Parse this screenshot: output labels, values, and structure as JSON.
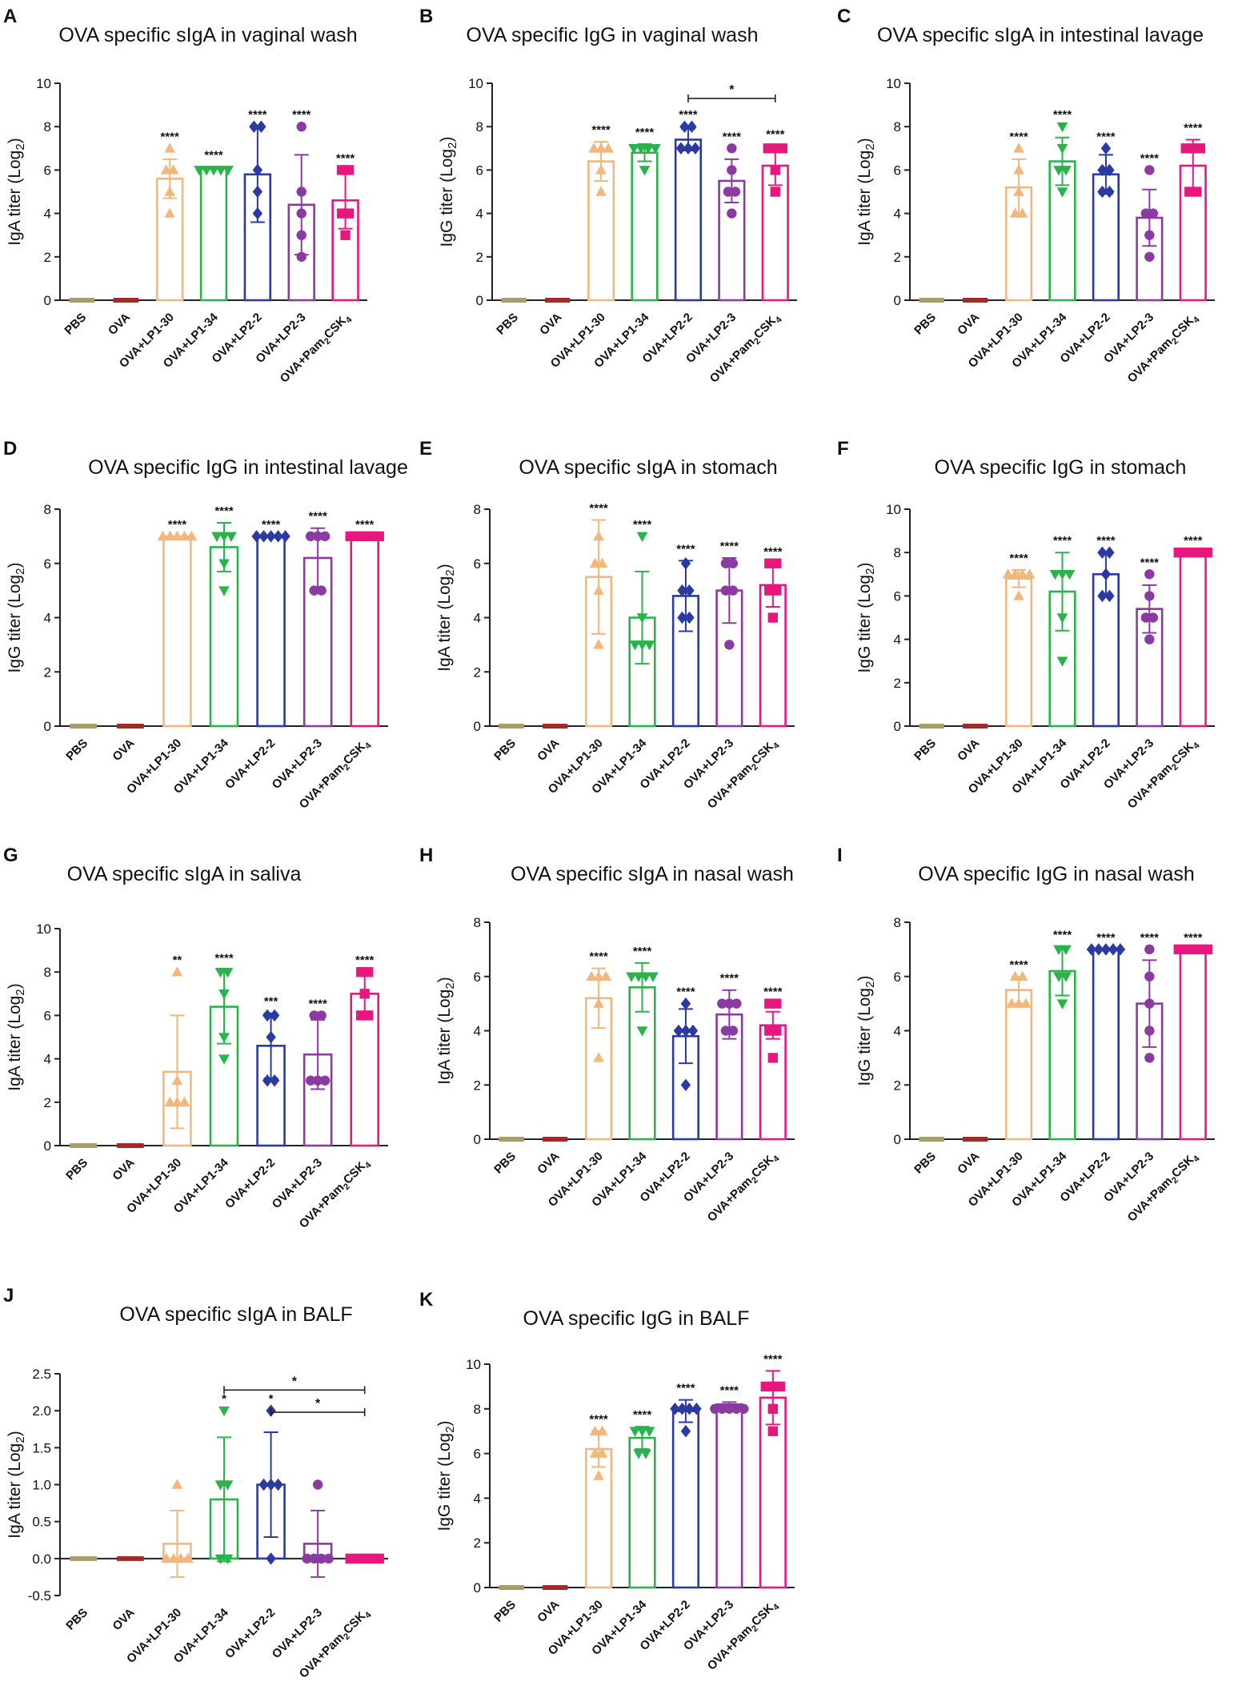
{
  "figure": {
    "colors": {
      "PBS": "#a99c6b",
      "OVA": "#a02a2a",
      "LP1-30": "#f2b77c",
      "LP1-34": "#29b34a",
      "LP2-2": "#2b3aa3",
      "LP2-3": "#8a3aa0",
      "Pam2CSK4": "#e8177e"
    },
    "categories": [
      "PBS",
      "OVA",
      "OVA+LP1-30",
      "OVA+LP1-34",
      "OVA+LP2-2",
      "OVA+LP2-3",
      "OVA+Pam2CSK4"
    ]
  },
  "chart_data": [
    {
      "panel": "A",
      "type": "bar",
      "title": "OVA specific sIgA in vaginal wash",
      "ylabel": "IgA titer (Log2)",
      "ylim": [
        0,
        10
      ],
      "yticks": [
        "0",
        "2",
        "4",
        "6",
        "8",
        "10"
      ],
      "values": [
        0,
        0,
        5.6,
        6.1,
        5.8,
        4.4,
        4.6
      ],
      "errors": [
        0,
        0,
        0.9,
        0.05,
        2.2,
        2.3,
        1.3
      ],
      "points": [
        [
          0,
          0,
          0,
          0,
          0
        ],
        [
          0,
          0,
          0,
          0,
          0
        ],
        [
          4,
          5,
          6,
          6,
          7
        ],
        [
          6,
          6,
          6,
          6,
          6
        ],
        [
          4,
          5,
          6,
          8,
          8
        ],
        [
          2,
          3,
          4,
          5,
          8
        ],
        [
          3,
          4,
          4,
          6,
          6
        ]
      ],
      "sig": [
        "",
        "",
        "****",
        "****",
        "****",
        "****",
        "****"
      ],
      "brackets": []
    },
    {
      "panel": "B",
      "type": "bar",
      "title": "OVA specific IgG in vaginal wash",
      "ylabel": "IgG titer (Log2)",
      "ylim": [
        0,
        10
      ],
      "yticks": [
        "0",
        "2",
        "4",
        "6",
        "8",
        "10"
      ],
      "values": [
        0,
        0,
        6.4,
        6.8,
        7.4,
        5.5,
        6.2
      ],
      "errors": [
        0,
        0,
        0.9,
        0.4,
        0.5,
        1.0,
        0.9
      ],
      "points": [
        [
          0,
          0,
          0,
          0,
          0
        ],
        [
          0,
          0,
          0,
          0,
          0
        ],
        [
          5,
          6,
          7,
          7,
          7
        ],
        [
          6,
          7,
          7,
          7,
          7
        ],
        [
          7,
          7,
          7,
          8,
          8
        ],
        [
          4,
          5,
          5,
          6,
          7
        ],
        [
          5,
          6,
          7,
          7,
          7
        ]
      ],
      "sig": [
        "",
        "",
        "****",
        "****",
        "****",
        "****",
        "****"
      ],
      "brackets": [
        {
          "from": 4,
          "to": 6,
          "level": 9.3,
          "label": "*"
        }
      ]
    },
    {
      "panel": "C",
      "type": "bar",
      "title": "OVA specific sIgA in  intestinal lavage",
      "ylabel": "IgA titer (Log2)",
      "ylim": [
        0,
        10
      ],
      "yticks": [
        "0",
        "2",
        "4",
        "6",
        "8",
        "10"
      ],
      "values": [
        0,
        0,
        5.2,
        6.4,
        5.8,
        3.8,
        6.2
      ],
      "errors": [
        0,
        0,
        1.3,
        1.1,
        0.9,
        1.3,
        1.2
      ],
      "points": [
        [
          0,
          0,
          0,
          0,
          0
        ],
        [
          0,
          0,
          0,
          0,
          0
        ],
        [
          4,
          4,
          5,
          6,
          7
        ],
        [
          5,
          6,
          6,
          7,
          8
        ],
        [
          5,
          5,
          6,
          6,
          7
        ],
        [
          2,
          3,
          4,
          4,
          6
        ],
        [
          5,
          5,
          7,
          7,
          7
        ]
      ],
      "sig": [
        "",
        "",
        "****",
        "****",
        "****",
        "****",
        "****"
      ],
      "brackets": []
    },
    {
      "panel": "D",
      "type": "bar",
      "title": "OVA specific IgG in intestinal lavage",
      "ylabel": "IgG titer (Log2)",
      "ylim": [
        0,
        8
      ],
      "yticks": [
        "0",
        "2",
        "4",
        "6",
        "8"
      ],
      "values": [
        0,
        0,
        7,
        6.6,
        7,
        6.2,
        7
      ],
      "errors": [
        0,
        0,
        0,
        0.9,
        0,
        1.1,
        0
      ],
      "points": [
        [
          0,
          0,
          0,
          0,
          0
        ],
        [
          0,
          0,
          0,
          0,
          0
        ],
        [
          7,
          7,
          7,
          7,
          7
        ],
        [
          5,
          6,
          7,
          7,
          7
        ],
        [
          7,
          7,
          7,
          7,
          7
        ],
        [
          5,
          5,
          7,
          7,
          7
        ],
        [
          7,
          7,
          7,
          7,
          7
        ]
      ],
      "sig": [
        "",
        "",
        "****",
        "****",
        "****",
        "****",
        "****"
      ],
      "brackets": []
    },
    {
      "panel": "E",
      "type": "bar",
      "title": "OVA specific sIgA in stomach",
      "ylabel": "IgA titer (Log2)",
      "ylim": [
        0,
        8
      ],
      "yticks": [
        "0",
        "2",
        "4",
        "6",
        "8"
      ],
      "values": [
        0,
        0,
        5.5,
        4,
        4.8,
        5,
        5.2
      ],
      "errors": [
        0,
        0,
        2.1,
        1.7,
        1.3,
        1.2,
        0.8
      ],
      "points": [
        [
          0,
          0,
          0,
          0,
          0
        ],
        [
          0,
          0,
          0,
          0,
          0
        ],
        [
          3,
          5,
          6,
          6,
          7
        ],
        [
          3,
          3,
          3,
          4,
          7
        ],
        [
          4,
          4,
          5,
          5,
          6
        ],
        [
          3,
          5,
          5,
          6,
          6
        ],
        [
          4,
          5,
          5,
          6,
          6
        ]
      ],
      "sig": [
        "",
        "",
        "****",
        "****",
        "****",
        "****",
        "****"
      ],
      "brackets": []
    },
    {
      "panel": "F",
      "type": "bar",
      "title": "OVA specific IgG in stomach",
      "ylabel": "IgG titer (Log2)",
      "ylim": [
        0,
        10
      ],
      "yticks": [
        "0",
        "2",
        "4",
        "6",
        "8",
        "10"
      ],
      "values": [
        0,
        0,
        6.8,
        6.2,
        7,
        5.4,
        8
      ],
      "errors": [
        0,
        0,
        0.4,
        1.8,
        1.0,
        1.1,
        0
      ],
      "points": [
        [
          0,
          0,
          0,
          0,
          0
        ],
        [
          0,
          0,
          0,
          0,
          0
        ],
        [
          6,
          7,
          7,
          7,
          7
        ],
        [
          3,
          5,
          7,
          7,
          7
        ],
        [
          6,
          6,
          7,
          8,
          8
        ],
        [
          4,
          5,
          5,
          6,
          7
        ],
        [
          8,
          8,
          8,
          8,
          8
        ]
      ],
      "sig": [
        "",
        "",
        "****",
        "****",
        "****",
        "****",
        "****"
      ],
      "brackets": []
    },
    {
      "panel": "G",
      "type": "bar",
      "title": "OVA specific sIgA in saliva",
      "ylabel": "IgA titer (Log2)",
      "ylim": [
        0,
        10
      ],
      "yticks": [
        "0",
        "2",
        "4",
        "6",
        "8",
        "10"
      ],
      "values": [
        0,
        0,
        3.4,
        6.4,
        4.6,
        4.2,
        7
      ],
      "errors": [
        0,
        0,
        2.6,
        1.7,
        1.5,
        1.6,
        1.0
      ],
      "points": [
        [
          0,
          0,
          0,
          0,
          0
        ],
        [
          0,
          0,
          0,
          0,
          0
        ],
        [
          2,
          2,
          2,
          3,
          8
        ],
        [
          4,
          5,
          7,
          8,
          8
        ],
        [
          3,
          3,
          5,
          6,
          6
        ],
        [
          3,
          3,
          3,
          6,
          6
        ],
        [
          6,
          6,
          7,
          8,
          8
        ]
      ],
      "sig": [
        "",
        "",
        "**",
        "****",
        "***",
        "****",
        "****"
      ],
      "brackets": []
    },
    {
      "panel": "H",
      "type": "bar",
      "title": "OVA specific sIgA in nasal wash",
      "ylabel": "IgA titer (Log2)",
      "ylim": [
        0,
        8
      ],
      "yticks": [
        "0",
        "2",
        "4",
        "6",
        "8"
      ],
      "values": [
        0,
        0,
        5.2,
        5.6,
        3.8,
        4.6,
        4.2
      ],
      "errors": [
        0,
        0,
        1.1,
        0.9,
        1.0,
        0.9,
        0.5
      ],
      "points": [
        [
          0,
          0,
          0,
          0,
          0
        ],
        [
          0,
          0,
          0,
          0,
          0
        ],
        [
          3,
          5,
          6,
          6,
          6
        ],
        [
          4,
          6,
          6,
          6,
          6
        ],
        [
          2,
          4,
          4,
          4,
          5
        ],
        [
          4,
          4,
          5,
          5,
          5
        ],
        [
          3,
          4,
          4,
          5,
          5
        ]
      ],
      "sig": [
        "",
        "",
        "****",
        "****",
        "****",
        "****",
        "****"
      ],
      "brackets": []
    },
    {
      "panel": "I",
      "type": "bar",
      "title": "OVA specific IgG in nasal wash",
      "ylabel": "IgG titer (Log2)",
      "ylim": [
        0,
        8
      ],
      "yticks": [
        "0",
        "2",
        "4",
        "6",
        "8"
      ],
      "values": [
        0,
        0,
        5.5,
        6.2,
        7,
        5,
        7
      ],
      "errors": [
        0,
        0,
        0.5,
        0.9,
        0,
        1.6,
        0
      ],
      "points": [
        [
          0,
          0,
          0,
          0,
          0
        ],
        [
          0,
          0,
          0,
          0,
          0
        ],
        [
          5,
          5,
          5,
          6,
          6
        ],
        [
          5,
          6,
          6,
          7,
          7
        ],
        [
          7,
          7,
          7,
          7,
          7
        ],
        [
          3,
          4,
          5,
          6,
          7
        ],
        [
          7,
          7,
          7,
          7,
          7
        ]
      ],
      "sig": [
        "",
        "",
        "****",
        "****",
        "****",
        "****",
        "****"
      ],
      "brackets": []
    },
    {
      "panel": "J",
      "type": "bar",
      "title": "OVA specific sIgA in BALF",
      "ylabel": "IgA titer (Log2)",
      "ylim": [
        -0.5,
        2.5
      ],
      "yticks": [
        "-0.5",
        "0.0",
        "0.5",
        "1.0",
        "1.5",
        "2.0",
        "2.5"
      ],
      "values": [
        0,
        0,
        0.2,
        0.8,
        1,
        0.2,
        0
      ],
      "errors": [
        0,
        0,
        0.45,
        0.84,
        0.71,
        0.45,
        0
      ],
      "points": [
        [
          0,
          0,
          0,
          0,
          0
        ],
        [
          0,
          0,
          0,
          0,
          0
        ],
        [
          0,
          0,
          0,
          0,
          1
        ],
        [
          0,
          0,
          1,
          1,
          2
        ],
        [
          0,
          1,
          1,
          1,
          2
        ],
        [
          0,
          0,
          0,
          0,
          1
        ],
        [
          0,
          0,
          0,
          0,
          0
        ]
      ],
      "sig": [
        "",
        "",
        "",
        "*",
        "*",
        "",
        ""
      ],
      "brackets": [
        {
          "from": 3,
          "to": 6,
          "level": 2.28,
          "label": "*"
        },
        {
          "from": 4,
          "to": 6,
          "level": 1.98,
          "label": "*"
        }
      ]
    },
    {
      "panel": "K",
      "type": "bar",
      "title": "OVA specific IgG in BALF",
      "ylabel": "IgG titer (Log2)",
      "ylim": [
        0,
        10
      ],
      "yticks": [
        "0",
        "2",
        "4",
        "6",
        "8",
        "10"
      ],
      "values": [
        0,
        0,
        6.2,
        6.7,
        7.9,
        8.2,
        8.5
      ],
      "errors": [
        0,
        0,
        0.8,
        0.5,
        0.5,
        0.1,
        1.2
      ],
      "points": [
        [
          0,
          0,
          0,
          0,
          0
        ],
        [
          0,
          0,
          0,
          0,
          0
        ],
        [
          5,
          6,
          6,
          7,
          7
        ],
        [
          6,
          6,
          7,
          7,
          7
        ],
        [
          7,
          8,
          8,
          8,
          8
        ],
        [
          8,
          8,
          8,
          8,
          8
        ],
        [
          7,
          8,
          9,
          9,
          9
        ]
      ],
      "sig": [
        "",
        "",
        "****",
        "****",
        "****",
        "****",
        "****"
      ],
      "brackets": []
    }
  ]
}
